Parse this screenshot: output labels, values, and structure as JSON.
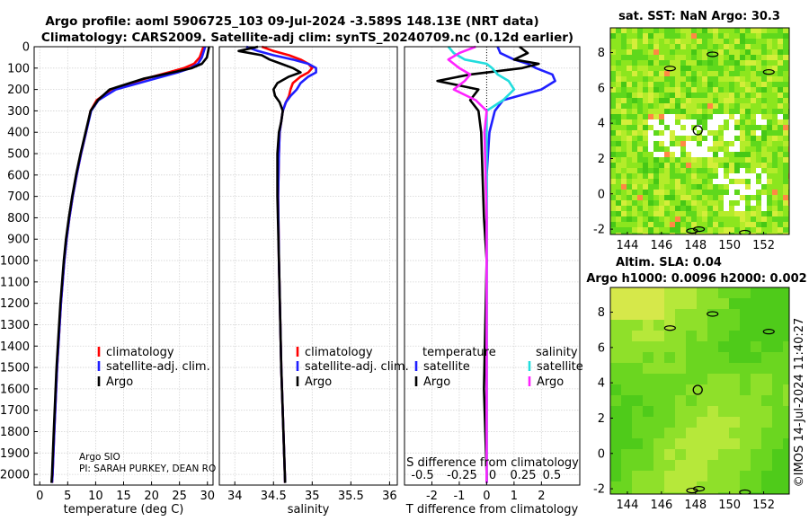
{
  "figure": {
    "title_line1": "Argo profile: aoml 5906725_103 09-Jul-2024 -3.589S 148.13E (NRT data)",
    "title_line2": "Climatology: CARS2009. Satellite-adj clim: synTS_20240709.nc (0.12d earlier)",
    "credit_line1": "Argo SIO",
    "credit_line2": "PI: SARAH PURKEY, DEAN RO",
    "timestamp": "©IMOS 14-Jul-2024 11:40:27",
    "colors": {
      "climatology": "#ff0000",
      "satellite": "#1f1fff",
      "argo": "#000000",
      "sal_satellite": "#22dddd",
      "sal_argo": "#ff22ff",
      "sst_map": "#7fe81a",
      "sla_map": "#55dd22"
    }
  },
  "chart_data": [
    {
      "type": "line",
      "id": "temperature",
      "xlabel": "temperature (deg C)",
      "ylabel": "",
      "xlim": [
        -1,
        31
      ],
      "ylim": [
        2050,
        0
      ],
      "xticks": [
        "0",
        "5",
        "10",
        "15",
        "20",
        "25",
        "30"
      ],
      "yticks": [
        "0",
        "100",
        "200",
        "300",
        "400",
        "500",
        "600",
        "700",
        "800",
        "900",
        "1000",
        "1100",
        "1200",
        "1300",
        "1400",
        "1500",
        "1600",
        "1700",
        "1800",
        "1900",
        "2000"
      ],
      "legend": [
        "climatology",
        "satellite-adj. clim.",
        "Argo"
      ],
      "depth": [
        0,
        50,
        80,
        100,
        120,
        150,
        200,
        250,
        300,
        400,
        500,
        600,
        700,
        800,
        900,
        1000,
        1200,
        1500,
        1800,
        2000,
        2040
      ],
      "series": [
        {
          "name": "climatology",
          "values": [
            29.3,
            28.6,
            27.6,
            25.8,
            23.0,
            18.8,
            12.8,
            10.2,
            9.1,
            8.3,
            7.4,
            6.6,
            5.9,
            5.3,
            4.8,
            4.4,
            3.8,
            3.1,
            2.6,
            2.3,
            2.2
          ]
        },
        {
          "name": "satellite-adj. clim.",
          "values": [
            29.6,
            29.0,
            28.3,
            27.0,
            24.7,
            20.5,
            13.6,
            10.5,
            9.2,
            8.3,
            7.4,
            6.6,
            5.9,
            5.3,
            4.8,
            4.4,
            3.8,
            3.1,
            2.6,
            2.3,
            2.2
          ]
        },
        {
          "name": "Argo",
          "values": [
            30.3,
            29.9,
            29.0,
            27.2,
            23.8,
            18.5,
            12.5,
            10.4,
            9.1,
            8.2,
            7.3,
            6.5,
            5.8,
            5.2,
            4.7,
            4.3,
            3.7,
            3.0,
            2.5,
            2.2,
            2.1
          ]
        }
      ]
    },
    {
      "type": "line",
      "id": "salinity",
      "xlabel": "salinity",
      "xlim": [
        33.8,
        36.1
      ],
      "ylim": [
        2050,
        0
      ],
      "xticks": [
        "34",
        "34.5",
        "35",
        "35.5",
        "36"
      ],
      "legend": [
        "climatology",
        "satellite-adj. clim.",
        "Argo"
      ],
      "depth": [
        0,
        20,
        40,
        60,
        80,
        100,
        120,
        140,
        170,
        200,
        230,
        260,
        300,
        350,
        400,
        500,
        700,
        1000,
        1500,
        2040
      ],
      "series": [
        {
          "name": "climatology",
          "values": [
            34.35,
            34.5,
            34.7,
            34.85,
            34.95,
            35.0,
            34.95,
            34.85,
            34.75,
            34.72,
            34.7,
            34.66,
            34.62,
            34.6,
            34.58,
            34.57,
            34.56,
            34.57,
            34.6,
            34.65
          ]
        },
        {
          "name": "satellite-adj. clim.",
          "values": [
            34.15,
            34.3,
            34.5,
            34.75,
            34.95,
            35.05,
            35.05,
            34.95,
            34.85,
            34.8,
            34.72,
            34.66,
            34.62,
            34.6,
            34.58,
            34.57,
            34.56,
            34.57,
            34.6,
            34.65
          ]
        },
        {
          "name": "Argo",
          "values": [
            34.3,
            34.05,
            34.35,
            34.45,
            34.6,
            34.75,
            34.85,
            34.7,
            34.55,
            34.5,
            34.52,
            34.58,
            34.62,
            34.6,
            34.57,
            34.55,
            34.55,
            34.57,
            34.6,
            34.65
          ]
        }
      ]
    },
    {
      "type": "line",
      "id": "difference",
      "xlabel": "T difference from climatology",
      "upper_xlabel": "S difference from climatology",
      "xlim": [
        -3,
        3.4
      ],
      "ylim": [
        2050,
        0
      ],
      "xticks": [
        "-2",
        "-1",
        "0",
        "1",
        "2"
      ],
      "upper_xticks": [
        "-0.5",
        "-0.25",
        "0",
        "0.25",
        "0.5"
      ],
      "legend_temperature_title": "temperature",
      "legend_salinity_title": "salinity",
      "legend": [
        "satellite",
        "Argo",
        "satellite",
        "Argo"
      ],
      "depth": [
        0,
        30,
        60,
        80,
        100,
        130,
        160,
        200,
        250,
        300,
        400,
        600,
        800,
        1000,
        1300,
        1600,
        2000,
        2040
      ],
      "series": [
        {
          "name": "T satellite",
          "values": [
            0.4,
            0.5,
            1.0,
            1.5,
            1.8,
            2.4,
            2.5,
            2.0,
            0.6,
            0.3,
            0.1,
            0.0,
            0.0,
            0.0,
            0.0,
            0.0,
            0.0,
            0.0
          ]
        },
        {
          "name": "T Argo",
          "values": [
            1.2,
            1.5,
            1.0,
            1.9,
            1.3,
            -0.6,
            -1.8,
            -0.3,
            -0.6,
            -0.3,
            -0.2,
            -0.15,
            -0.1,
            0.0,
            -0.05,
            -0.1,
            0.0,
            0.0
          ]
        },
        {
          "name": "S satellite",
          "values": [
            -0.35,
            -0.3,
            -0.2,
            0.0,
            0.05,
            0.1,
            0.2,
            0.25,
            0.15,
            0.0,
            0.0,
            0.0,
            0.0,
            0.0,
            0.0,
            0.0,
            0.0,
            0.0
          ]
        },
        {
          "name": "S Argo",
          "values": [
            -0.1,
            -0.25,
            -0.35,
            -0.3,
            -0.25,
            -0.15,
            -0.2,
            -0.3,
            -0.1,
            0.0,
            -0.02,
            -0.01,
            0.0,
            0.0,
            0.0,
            0.0,
            0.0,
            0.0
          ]
        }
      ]
    },
    {
      "type": "heatmap",
      "id": "sst_map",
      "title": "sat. SST: NaN Argo: 30.3",
      "xlim": [
        143,
        153.5
      ],
      "ylim": [
        -2.3,
        9.4
      ],
      "xticks": [
        "144",
        "146",
        "148",
        "150",
        "152"
      ],
      "yticks": [
        "-2",
        "0",
        "2",
        "4",
        "6",
        "8"
      ],
      "profile_location": {
        "lon": 148.13,
        "lat": 3.6
      }
    },
    {
      "type": "heatmap",
      "id": "sla_map",
      "title_line1": "Altim. SLA: 0.04",
      "title_line2": "Argo h1000: 0.0096 h2000: 0.002",
      "xlim": [
        143,
        153.5
      ],
      "ylim": [
        -2.3,
        9.4
      ],
      "xticks": [
        "144",
        "146",
        "148",
        "150",
        "152"
      ],
      "yticks": [
        "-2",
        "0",
        "2",
        "4",
        "6",
        "8"
      ],
      "profile_location": {
        "lon": 148.13,
        "lat": 3.6
      }
    }
  ]
}
